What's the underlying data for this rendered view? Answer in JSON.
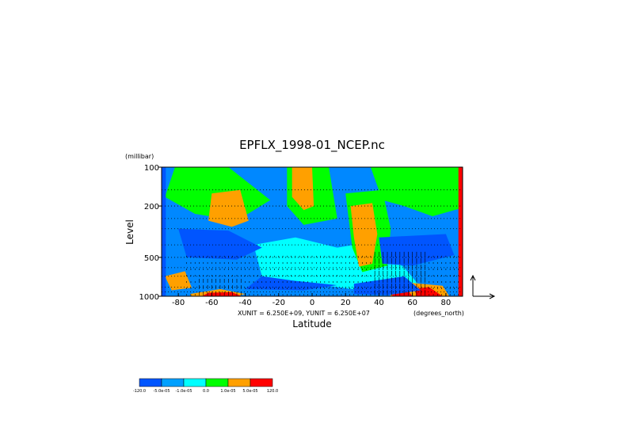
{
  "chart_data": {
    "type": "heatmap",
    "title": "EPFLX_1998-01_NCEP.nc",
    "xlabel": "Latitude",
    "ylabel": "Level",
    "y_unit_label": "(millibar)",
    "x_unit_label": "(degrees_north)",
    "vector_scale_label": "XUNIT = 6.250E+09, YUNIT = 6.250E+07",
    "xlim": [
      -90,
      90
    ],
    "ylim": [
      1000,
      100
    ],
    "y_scale": "log",
    "x_ticks": [
      -80,
      -60,
      -40,
      -20,
      0,
      20,
      40,
      60,
      80
    ],
    "y_ticks": [
      100,
      200,
      500,
      1000
    ],
    "colorbar": {
      "levels": [
        "-120.0",
        "-5.0e-05",
        "-1.0e-05",
        "0.0",
        "1.0e-05",
        "5.0e-05",
        "120.0"
      ],
      "colors": [
        "#0055ff",
        "#00a0ff",
        "#00ffff",
        "#00ff00",
        "#ffa000",
        "#ff0000"
      ]
    },
    "fill_regions": [
      {
        "category": "cyan",
        "points": [
          [
            -35,
            400
          ],
          [
            -10,
            350
          ],
          [
            15,
            420
          ],
          [
            35,
            380
          ],
          [
            55,
            600
          ],
          [
            65,
            850
          ],
          [
            30,
            900
          ],
          [
            0,
            800
          ],
          [
            -30,
            700
          ]
        ]
      },
      {
        "category": "green",
        "points": [
          [
            -82,
            100
          ],
          [
            -50,
            100
          ],
          [
            -25,
            180
          ],
          [
            -45,
            260
          ],
          [
            -70,
            230
          ],
          [
            -88,
            170
          ]
        ]
      },
      {
        "category": "green",
        "points": [
          [
            35,
            100
          ],
          [
            88,
            100
          ],
          [
            88,
            210
          ],
          [
            72,
            240
          ],
          [
            55,
            200
          ],
          [
            42,
            180
          ]
        ]
      },
      {
        "category": "green",
        "points": [
          [
            -15,
            100
          ],
          [
            10,
            100
          ],
          [
            15,
            250
          ],
          [
            -5,
            280
          ],
          [
            -15,
            200
          ]
        ]
      },
      {
        "category": "green",
        "points": [
          [
            20,
            160
          ],
          [
            42,
            150
          ],
          [
            47,
            300
          ],
          [
            45,
            580
          ],
          [
            30,
            650
          ],
          [
            24,
            420
          ]
        ]
      },
      {
        "category": "orange",
        "points": [
          [
            -60,
            160
          ],
          [
            -43,
            150
          ],
          [
            -38,
            260
          ],
          [
            -48,
            290
          ],
          [
            -62,
            260
          ]
        ]
      },
      {
        "category": "orange",
        "points": [
          [
            -12,
            100
          ],
          [
            0,
            100
          ],
          [
            1,
            200
          ],
          [
            -5,
            215
          ],
          [
            -12,
            170
          ]
        ]
      },
      {
        "category": "orange",
        "points": [
          [
            23,
            200
          ],
          [
            36,
            190
          ],
          [
            39,
            330
          ],
          [
            36,
            560
          ],
          [
            28,
            590
          ],
          [
            25,
            350
          ]
        ]
      },
      {
        "category": "orange",
        "points": [
          [
            -88,
            700
          ],
          [
            -76,
            640
          ],
          [
            -72,
            860
          ],
          [
            -84,
            900
          ]
        ]
      },
      {
        "category": "orange",
        "points": [
          [
            -73,
            960
          ],
          [
            -55,
            880
          ],
          [
            -40,
            960
          ],
          [
            -45,
            1000
          ],
          [
            -72,
            1000
          ]
        ]
      },
      {
        "category": "orange",
        "points": [
          [
            47,
            800
          ],
          [
            60,
            790
          ],
          [
            78,
            830
          ],
          [
            82,
            1000
          ],
          [
            47,
            1000
          ]
        ]
      },
      {
        "category": "red",
        "points": [
          [
            -62,
            940
          ],
          [
            -48,
            930
          ],
          [
            -42,
            1000
          ],
          [
            -66,
            1000
          ]
        ]
      },
      {
        "category": "red",
        "points": [
          [
            48,
            880
          ],
          [
            56,
            860
          ],
          [
            60,
            1000
          ],
          [
            48,
            1000
          ]
        ]
      },
      {
        "category": "red",
        "points": [
          [
            62,
            870
          ],
          [
            70,
            850
          ],
          [
            78,
            1000
          ],
          [
            62,
            1000
          ]
        ]
      },
      {
        "category": "red",
        "points": [
          [
            87.5,
            100
          ],
          [
            90,
            100
          ],
          [
            90,
            1000
          ],
          [
            87.5,
            1000
          ]
        ]
      },
      {
        "category": "red",
        "points": [
          [
            -90,
            190
          ],
          [
            -88.5,
            190
          ],
          [
            -88.5,
            240
          ],
          [
            -90,
            240
          ]
        ]
      },
      {
        "category": "darkblue",
        "points": [
          [
            -80,
            300
          ],
          [
            -50,
            310
          ],
          [
            -30,
            420
          ],
          [
            -45,
            520
          ],
          [
            -75,
            500
          ]
        ]
      },
      {
        "category": "darkblue",
        "points": [
          [
            40,
            350
          ],
          [
            80,
            330
          ],
          [
            85,
            480
          ],
          [
            60,
            580
          ],
          [
            42,
            560
          ]
        ]
      },
      {
        "category": "darkblue",
        "points": [
          [
            -30,
            700
          ],
          [
            -10,
            760
          ],
          [
            15,
            820
          ],
          [
            -5,
            900
          ],
          [
            -40,
            880
          ]
        ]
      },
      {
        "category": "darkblue",
        "points": [
          [
            25,
            800
          ],
          [
            55,
            700
          ],
          [
            65,
            900
          ],
          [
            45,
            980
          ],
          [
            25,
            960
          ]
        ]
      },
      {
        "category": "darkblue",
        "points": [
          [
            -90,
            100
          ],
          [
            -87.5,
            100
          ],
          [
            -87.5,
            1000
          ],
          [
            -90,
            1000
          ]
        ]
      }
    ],
    "vector_region": {
      "x_range": [
        -75,
        88
      ],
      "y_range": [
        500,
        1000
      ]
    }
  }
}
